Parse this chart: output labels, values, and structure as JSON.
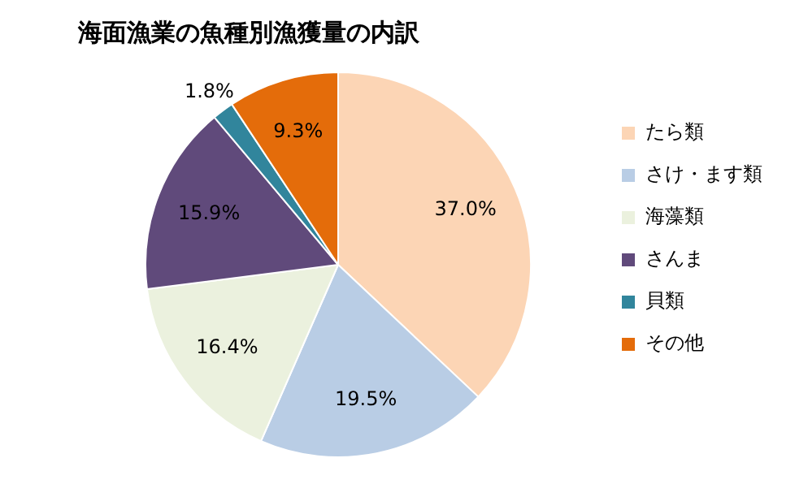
{
  "chart_data": {
    "type": "pie",
    "title": "海面漁業の魚種別漁獲量の内訳",
    "categories": [
      "たら類",
      "さけ・ます類",
      "海藻類",
      "さんま",
      "貝類",
      "その他"
    ],
    "values": [
      37.0,
      19.5,
      16.4,
      15.9,
      1.8,
      9.3
    ],
    "colors": [
      "#fcd5b5",
      "#b9cde5",
      "#ebf1de",
      "#604a7b",
      "#31859c",
      "#e46c0a"
    ],
    "value_labels": [
      "37.0%",
      "19.5%",
      "16.4%",
      "15.9%",
      "1.8%",
      "9.3%"
    ],
    "legend": "right"
  }
}
